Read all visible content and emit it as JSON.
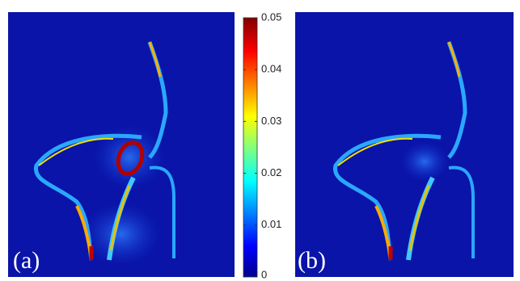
{
  "panels": [
    {
      "label": "(a)"
    },
    {
      "label": "(b)"
    }
  ],
  "colorbar": {
    "lim": [
      0,
      0.05
    ],
    "ticks": [
      0,
      0.01,
      0.02,
      0.03,
      0.04,
      0.05
    ]
  }
}
